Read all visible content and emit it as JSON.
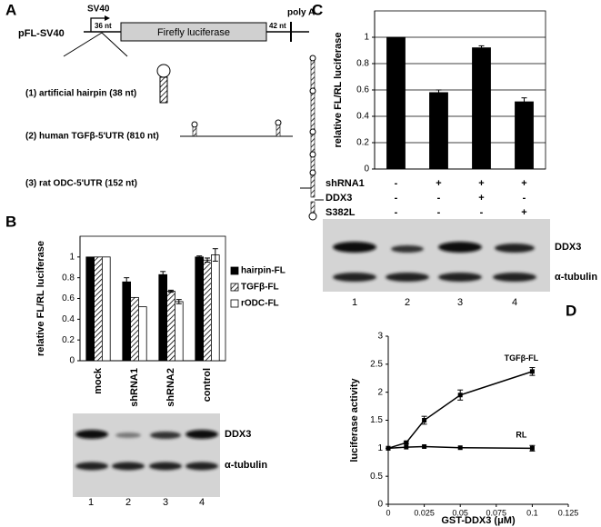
{
  "panels": {
    "letters": [
      "A",
      "B",
      "C",
      "D"
    ]
  },
  "diagram": {
    "construct": "pFL-SV40",
    "promoter": "SV40",
    "left_spacer": "36 nt",
    "gene": "Firefly luciferase",
    "right_spacer": "42 nt",
    "polyA": "poly A",
    "inserts": [
      "(1) artificial hairpin (38 nt)",
      "(2) human TGFβ-5'UTR (810 nt)",
      "(3) rat ODC-5'UTR (152 nt)"
    ]
  },
  "blots": [
    {
      "bands": [
        "DDX3",
        "α-tubulin"
      ],
      "lanes": [
        "1",
        "2",
        "3",
        "4"
      ]
    },
    {
      "bands": [
        "DDX3",
        "α-tubulin"
      ],
      "lanes": [
        "1",
        "2",
        "3",
        "4"
      ]
    }
  ],
  "chart_data": [
    {
      "type": "bar",
      "y_label": "relative FL/RL luciferase",
      "categories": [
        "mock",
        "shRNA1",
        "shRNA2",
        "control"
      ],
      "series": [
        {
          "name": "hairpin-FL",
          "color": "#000000",
          "values": [
            1,
            0.76,
            0.83,
            1.0
          ],
          "errors": [
            0,
            0.04,
            0.03,
            0.01
          ]
        },
        {
          "name": "TGFβ-FL",
          "color": "#ffffff",
          "pattern": "diagonal",
          "values": [
            1,
            0.61,
            0.67,
            0.97
          ],
          "errors": [
            0,
            0,
            0.01,
            0.02
          ]
        },
        {
          "name": "rODC-FL",
          "color": "#ffffff",
          "values": [
            1,
            0.52,
            0.57,
            1.02
          ],
          "errors": [
            0,
            0,
            0.02,
            0.06
          ]
        }
      ],
      "ylim": [
        0,
        1.2
      ],
      "yticks": [
        0,
        0.2,
        0.4,
        0.6,
        0.8,
        1
      ],
      "grid": false,
      "legend": "right"
    },
    {
      "type": "bar",
      "y_label": "relative FL/RL luciferase",
      "values": [
        1,
        0.58,
        0.92,
        0.51
      ],
      "errors": [
        0,
        0.02,
        0.015,
        0.03
      ],
      "color": "#000000",
      "treatments": [
        {
          "label": "shRNA1",
          "marks": [
            "-",
            "+",
            "+",
            "+"
          ]
        },
        {
          "label": "DDX3",
          "marks": [
            "-",
            "-",
            "+",
            "-"
          ]
        },
        {
          "label": "S382L",
          "marks": [
            "-",
            "-",
            "-",
            "+"
          ]
        }
      ],
      "ylim": [
        0,
        1.2
      ],
      "yticks": [
        0,
        0.2,
        0.4,
        0.6,
        0.8,
        1
      ],
      "grid": true
    },
    {
      "type": "line",
      "x_label": "GST-DDX3 (μM)",
      "y_label": "luciferase activity",
      "x": [
        0,
        0.0125,
        0.025,
        0.05,
        0.1
      ],
      "series": [
        {
          "name": "TGFβ-FL",
          "color": "#000000",
          "values": [
            1,
            1.1,
            1.5,
            1.95,
            2.37
          ],
          "errors": [
            0,
            0.02,
            0.07,
            0.09,
            0.07
          ]
        },
        {
          "name": "RL",
          "color": "#000000",
          "values": [
            1,
            1.02,
            1.03,
            1.01,
            1.0
          ],
          "errors": [
            0,
            0,
            0,
            0,
            0.05
          ]
        }
      ],
      "xlim": [
        0,
        0.125
      ],
      "xticks": [
        0,
        0.025,
        0.05,
        0.075,
        0.1,
        0.125
      ],
      "ylim": [
        0,
        3
      ],
      "yticks": [
        0,
        0.5,
        1,
        1.5,
        2,
        2.5,
        3
      ],
      "grid": false
    }
  ]
}
